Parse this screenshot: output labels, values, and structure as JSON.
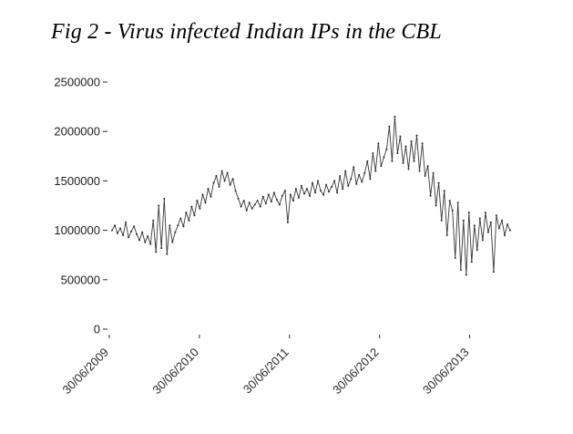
{
  "figure": {
    "caption": "Fig 2 - Virus infected Indian IPs in the CBL"
  },
  "chart_data": {
    "type": "line",
    "title": "Virus infected Indian IPs in the CBL",
    "xlabel": "",
    "ylabel": "",
    "ylim": [
      0,
      2500000
    ],
    "grid": false,
    "legend": "none",
    "line_color": "#383838",
    "y_ticks": [
      2500000,
      2000000,
      1500000,
      1000000,
      500000,
      0
    ],
    "y_tick_labels": [
      "2500000",
      "2000000",
      "1500000",
      "1000000",
      "500000",
      "0"
    ],
    "x_tick_labels": [
      "30/06/2009",
      "30/06/2010",
      "30/06/2011",
      "30/06/2012",
      "30/06/2013"
    ],
    "x_tick_positions_years": [
      2009.5,
      2010.5,
      2011.5,
      2012.5,
      2013.5
    ],
    "x_range_years": [
      2009.5,
      2013.95
    ],
    "series": [
      {
        "name": "Virus infected Indian IPs",
        "values": [
          1000000,
          1050000,
          970000,
          1020000,
          950000,
          1080000,
          930000,
          990000,
          1040000,
          960000,
          900000,
          980000,
          880000,
          940000,
          860000,
          1100000,
          780000,
          1250000,
          820000,
          1320000,
          760000,
          1050000,
          880000,
          980000,
          1050000,
          1120000,
          1040000,
          1180000,
          1100000,
          1240000,
          1150000,
          1300000,
          1220000,
          1360000,
          1280000,
          1420000,
          1340000,
          1480000,
          1550000,
          1440000,
          1600000,
          1500000,
          1580000,
          1460000,
          1520000,
          1400000,
          1320000,
          1240000,
          1300000,
          1200000,
          1280000,
          1220000,
          1260000,
          1300000,
          1240000,
          1340000,
          1270000,
          1360000,
          1290000,
          1380000,
          1310000,
          1260000,
          1350000,
          1400000,
          1080000,
          1360000,
          1300000,
          1420000,
          1330000,
          1450000,
          1370000,
          1420000,
          1350000,
          1480000,
          1380000,
          1500000,
          1400000,
          1360000,
          1460000,
          1390000,
          1440000,
          1500000,
          1380000,
          1550000,
          1420000,
          1600000,
          1450000,
          1520000,
          1640000,
          1470000,
          1560000,
          1490000,
          1580000,
          1700000,
          1520000,
          1780000,
          1600000,
          1880000,
          1650000,
          1740000,
          1820000,
          2050000,
          1700000,
          2150000,
          1780000,
          1950000,
          1680000,
          1850000,
          1620000,
          1900000,
          1700000,
          1960000,
          1600000,
          1880000,
          1550000,
          1650000,
          1350000,
          1580000,
          1250000,
          1480000,
          1100000,
          1400000,
          950000,
          1300000,
          1200000,
          720000,
          1280000,
          600000,
          1100000,
          550000,
          1180000,
          680000,
          1050000,
          800000,
          1120000,
          900000,
          1180000,
          980000,
          1080000,
          580000,
          1150000,
          1020000,
          1100000,
          950000,
          1060000,
          1000000
        ]
      }
    ]
  }
}
